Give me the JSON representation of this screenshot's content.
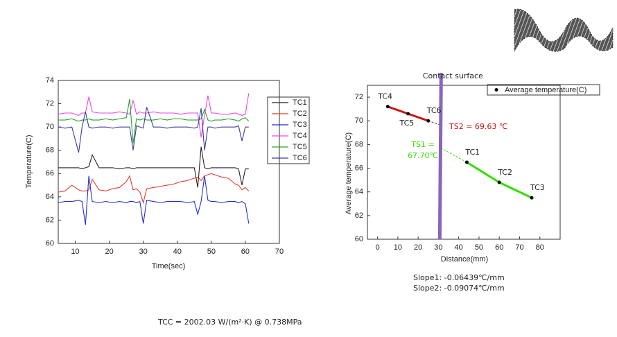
{
  "chart_data": [
    {
      "type": "line",
      "ylabel": "Temperature(C)",
      "xlabel": "Time(sec)",
      "xlim": [
        5,
        70
      ],
      "ylim": [
        60,
        74
      ],
      "xticks": [
        10,
        20,
        30,
        40,
        50,
        60,
        70
      ],
      "yticks": [
        60,
        62,
        64,
        66,
        68,
        70,
        72,
        74
      ],
      "x": [
        5,
        7,
        9,
        11,
        12,
        13,
        14,
        15,
        17,
        19,
        21,
        23,
        25,
        26,
        27,
        28,
        29,
        30,
        31,
        33,
        35,
        37,
        39,
        41,
        43,
        45,
        46,
        47,
        48,
        49,
        50,
        51,
        53,
        55,
        57,
        58,
        59,
        60,
        61
      ],
      "series": [
        {
          "name": "TC1",
          "color": "#222222",
          "values": [
            66.5,
            66.5,
            66.5,
            66.5,
            66.4,
            66.5,
            66.6,
            67.6,
            66.5,
            66.5,
            66.5,
            66.4,
            66.5,
            66.5,
            66.4,
            66.5,
            66.5,
            66.5,
            66.5,
            66.5,
            66.5,
            66.5,
            66.5,
            66.5,
            66.5,
            66.5,
            64.8,
            68.3,
            66.5,
            66.4,
            66.5,
            66.5,
            66.5,
            66.5,
            66.5,
            66.4,
            65.0,
            66.4,
            66.4
          ]
        },
        {
          "name": "TC2",
          "color": "#e83b2a",
          "values": [
            64.4,
            64.5,
            65.0,
            64.6,
            64.5,
            64.5,
            64.6,
            65.5,
            64.6,
            64.5,
            64.7,
            64.8,
            65.3,
            65.8,
            64.6,
            64.7,
            64.4,
            63.5,
            64.7,
            64.8,
            64.9,
            65.0,
            65.1,
            65.3,
            65.4,
            65.6,
            65.7,
            65.4,
            65.8,
            65.9,
            66.0,
            65.9,
            65.7,
            65.6,
            65.1,
            65.0,
            64.6,
            64.8,
            64.5
          ]
        },
        {
          "name": "TC3",
          "color": "#1f2fd6",
          "values": [
            63.5,
            63.6,
            63.6,
            63.7,
            63.6,
            61.6,
            65.8,
            63.6,
            63.5,
            63.6,
            63.5,
            63.6,
            63.5,
            63.6,
            63.6,
            63.5,
            63.6,
            61.7,
            63.7,
            63.6,
            63.5,
            63.6,
            63.6,
            63.6,
            63.5,
            63.6,
            62.5,
            63.6,
            65.8,
            63.7,
            63.6,
            63.6,
            63.5,
            63.6,
            63.6,
            63.5,
            63.6,
            63.4,
            61.7
          ]
        },
        {
          "name": "TC4",
          "color": "#ee44ee",
          "values": [
            71.1,
            71.2,
            71.2,
            71.0,
            71.2,
            71.2,
            72.6,
            71.3,
            71.2,
            71.2,
            71.2,
            71.3,
            71.2,
            71.1,
            72.3,
            71.1,
            71.3,
            71.2,
            71.2,
            71.3,
            71.2,
            71.2,
            71.2,
            71.1,
            71.2,
            71.2,
            71.2,
            69.1,
            71.0,
            72.7,
            71.2,
            71.2,
            71.1,
            71.1,
            71.2,
            71.1,
            71.0,
            71.1,
            72.9
          ]
        },
        {
          "name": "TC5",
          "color": "#2aa02a",
          "values": [
            70.6,
            70.6,
            70.7,
            70.5,
            70.6,
            70.6,
            70.7,
            70.6,
            70.6,
            70.7,
            70.6,
            70.7,
            70.8,
            72.4,
            68.6,
            70.7,
            70.6,
            70.7,
            70.6,
            70.6,
            70.7,
            70.6,
            70.7,
            70.7,
            70.6,
            70.6,
            70.6,
            70.7,
            71.5,
            70.6,
            70.5,
            70.6,
            70.6,
            70.7,
            70.6,
            70.5,
            70.7,
            70.8,
            70.5
          ]
        },
        {
          "name": "TC6",
          "color": "#3a3aa0",
          "values": [
            70.0,
            69.9,
            70.0,
            67.8,
            70.0,
            71.3,
            70.0,
            69.9,
            70.0,
            70.0,
            69.9,
            70.0,
            70.0,
            70.0,
            68.0,
            70.1,
            70.0,
            69.9,
            71.7,
            70.0,
            70.0,
            69.9,
            70.0,
            70.0,
            70.0,
            69.9,
            70.0,
            71.6,
            68.0,
            70.0,
            70.0,
            69.9,
            70.0,
            70.0,
            70.0,
            70.1,
            68.8,
            70.0,
            70.0
          ]
        }
      ]
    },
    {
      "type": "scatter",
      "ylabel": "Average temperature(C)",
      "xlabel": "Distance(mm)",
      "xlim": [
        -5,
        90
      ],
      "ylim": [
        60,
        73
      ],
      "xticks": [
        0,
        10,
        20,
        30,
        40,
        50,
        60,
        70,
        80
      ],
      "yticks": [
        60,
        62,
        64,
        66,
        68,
        70,
        72
      ],
      "x": [
        5,
        15,
        25,
        44,
        60,
        76
      ],
      "series": [
        {
          "name": "Average temperature(C)",
          "color": "#000000",
          "values": [
            71.2,
            70.6,
            70.0,
            66.5,
            64.8,
            63.5
          ]
        }
      ],
      "point_labels": [
        "TC4",
        "TC5",
        "TC6",
        "TC1",
        "TC2",
        "TC3"
      ],
      "fit_colors": [
        "#cc1111",
        "#33dd00"
      ],
      "contact_surface_label": "Contact surface",
      "contact_surface_x": 31,
      "contact_surface_color": "#8866bb",
      "annotations": [
        "TS2 = 69.63 ℃",
        "TS1 =",
        "67.70℃",
        "Slope1: -0.06439℃/mm",
        "Slope2: -0.09074℃/mm"
      ]
    }
  ],
  "footer_text": "TCC = 2002.03  W/(m²·K) @ 0.738MPa"
}
